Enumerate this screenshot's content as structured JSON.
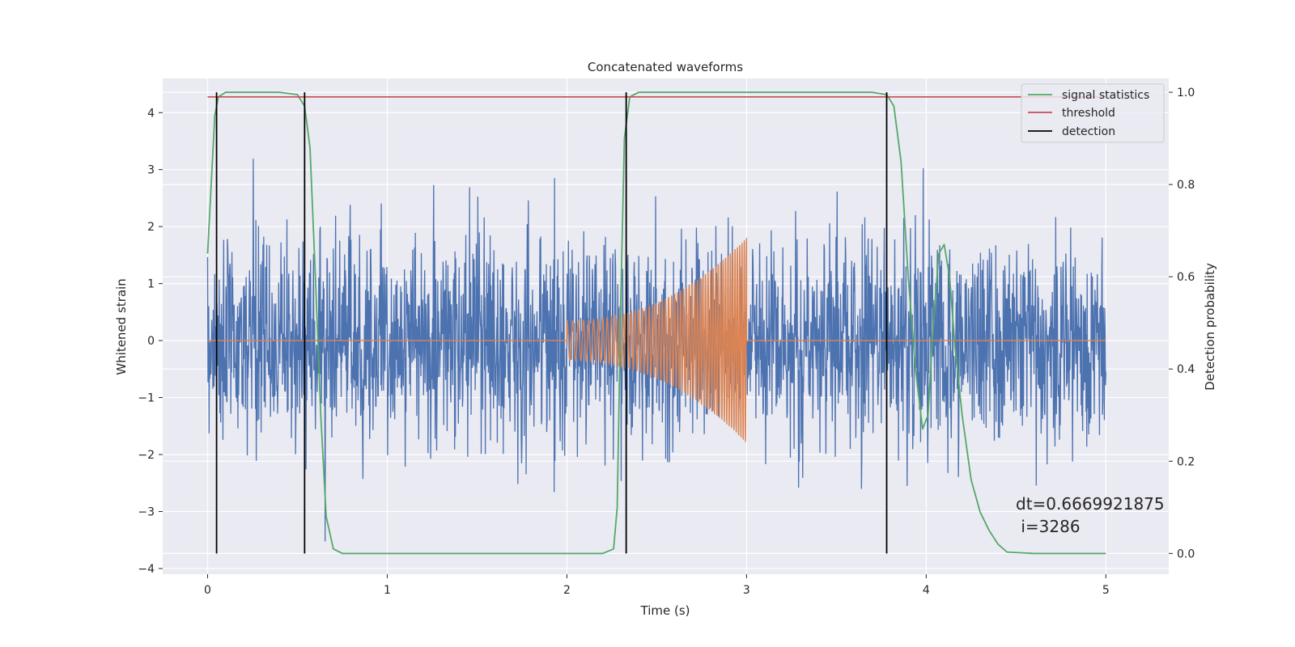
{
  "chart_data": {
    "type": "line",
    "title": "Concatenated waveforms",
    "xlabel": "Time (s)",
    "ylabel": "Whitened strain",
    "ylabel_right": "Detection probability",
    "xlim": [
      -0.25,
      5.35
    ],
    "ylim": [
      -4.1,
      4.6
    ],
    "ylim_right": [
      -0.045,
      1.03
    ],
    "x_ticks": [
      0,
      1,
      2,
      3,
      4,
      5
    ],
    "y_ticks": [
      -4,
      -3,
      -2,
      -1,
      0,
      1,
      2,
      3,
      4
    ],
    "y_ticks_right": [
      0.0,
      0.2,
      0.4,
      0.6,
      0.8,
      1.0
    ],
    "x_tick_labels": [
      "0",
      "1",
      "2",
      "3",
      "4",
      "5"
    ],
    "y_tick_labels": [
      "−4",
      "−3",
      "−2",
      "−1",
      "0",
      "1",
      "2",
      "3",
      "4"
    ],
    "y_tick_labels_right": [
      "0.0",
      "0.2",
      "0.4",
      "0.6",
      "0.8",
      "1.0"
    ],
    "grid": true,
    "legend_position": "top-right",
    "noise": {
      "x_range": [
        0,
        5
      ],
      "amplitude_typical": 1.2,
      "amplitude_peak": 3.6,
      "color": "#4c72b0"
    },
    "chirp": {
      "x_range": [
        2.0,
        3.0
      ],
      "start_amplitude": 0.35,
      "end_amplitude": 1.8,
      "baseline": 0,
      "color": "#dd8452"
    },
    "series": [
      {
        "name": "signal statistics",
        "axis": "right",
        "color": "#55a868",
        "x": [
          0,
          0.02,
          0.04,
          0.06,
          0.1,
          0.2,
          0.4,
          0.5,
          0.54,
          0.57,
          0.6,
          0.63,
          0.66,
          0.7,
          0.75,
          1.0,
          1.5,
          2.0,
          2.2,
          2.26,
          2.28,
          2.3,
          2.32,
          2.35,
          2.4,
          2.6,
          3.0,
          3.5,
          3.7,
          3.78,
          3.82,
          3.86,
          3.9,
          3.94,
          3.98,
          4.01,
          4.04,
          4.07,
          4.1,
          4.13,
          4.16,
          4.2,
          4.25,
          4.3,
          4.35,
          4.4,
          4.45,
          4.6,
          5.0
        ],
        "y": [
          0.65,
          0.8,
          0.95,
          0.99,
          1.0,
          1.0,
          1.0,
          0.995,
          0.97,
          0.88,
          0.6,
          0.3,
          0.08,
          0.01,
          0.0,
          0.0,
          0.0,
          0.0,
          0.0,
          0.01,
          0.1,
          0.55,
          0.9,
          0.99,
          1.0,
          1.0,
          1.0,
          1.0,
          1.0,
          0.995,
          0.97,
          0.85,
          0.6,
          0.4,
          0.27,
          0.3,
          0.5,
          0.65,
          0.67,
          0.6,
          0.45,
          0.3,
          0.16,
          0.09,
          0.05,
          0.02,
          0.003,
          0.0,
          0.0
        ]
      },
      {
        "name": "threshold",
        "axis": "right",
        "color": "#c44e52",
        "x": [
          0,
          5
        ],
        "y": [
          0.99,
          0.99
        ]
      },
      {
        "name": "detection",
        "axis": "left",
        "color": "#000000",
        "x": [
          0.05,
          0.54,
          2.33,
          3.78
        ]
      }
    ],
    "annotation": {
      "line1": "dt=0.6669921875",
      "line2": " i=3286"
    }
  }
}
